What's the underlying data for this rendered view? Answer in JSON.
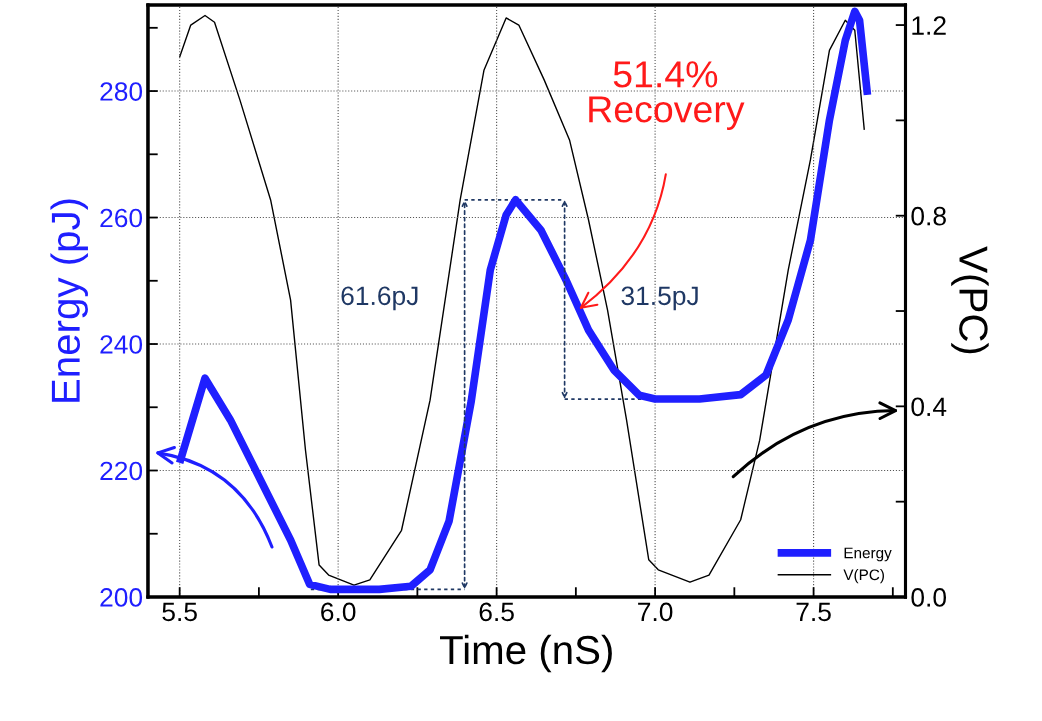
{
  "chart_data": {
    "type": "line",
    "xlabel": "Time (nS)",
    "ylabel": "Energy (pJ)",
    "y2label": "V(PC)",
    "xlim": [
      5.4,
      7.79
    ],
    "xticks": [
      5.5,
      {
        "value": 5.75,
        "label": null
      },
      {
        "value": 6,
        "label": "6.0"
      },
      {
        "value": 6.25,
        "label": null
      },
      6.5,
      {
        "value": 6.75,
        "label": null
      },
      {
        "value": 7,
        "label": "7.0"
      },
      {
        "value": 7.25,
        "label": null
      },
      7.5,
      {
        "value": 7.75,
        "label": null
      }
    ],
    "ylim": [
      200,
      293.6
    ],
    "yticks": [
      200,
      {
        "value": 210,
        "label": null
      },
      220,
      {
        "value": 230,
        "label": null
      },
      240,
      {
        "value": 250,
        "label": null
      },
      260,
      {
        "value": 270,
        "label": null
      },
      280,
      {
        "value": 290,
        "label": null
      }
    ],
    "y2lim": [
      0,
      1.242
    ],
    "y2ticks": [
      {
        "value": 0,
        "label": "0.0"
      },
      {
        "value": 0.2,
        "label": null
      },
      0.4,
      {
        "value": 0.6,
        "label": null
      },
      0.8,
      {
        "value": 1.0,
        "label": null
      },
      1.2
    ],
    "grid": true,
    "legend": "bottom right",
    "series": [
      {
        "name": "Energy",
        "color": "#1f1fff",
        "x": [
          5.5,
          5.58,
          5.66,
          5.755,
          5.85,
          5.91,
          5.975,
          6.13,
          6.23,
          6.29,
          6.35,
          6.42,
          6.48,
          6.53,
          6.56,
          6.64,
          6.72,
          6.79,
          6.87,
          6.95,
          7.0,
          7.14,
          7.27,
          7.35,
          7.42,
          7.49,
          7.55,
          7.6,
          7.63,
          7.645,
          7.67
        ],
        "values": [
          221.2,
          234.6,
          228,
          218.5,
          209,
          202,
          201.2,
          201.2,
          201.7,
          204.3,
          212,
          231,
          251.7,
          260.4,
          262.8,
          258,
          250,
          242.2,
          235.9,
          231.9,
          231.3,
          231.3,
          232,
          235.1,
          243.8,
          256.4,
          275.4,
          288,
          292.6,
          291.2,
          279.4
        ]
      },
      {
        "name": "V(PC)",
        "color": "#000000",
        "axis": "y2",
        "x": [
          5.5,
          5.535,
          5.58,
          5.61,
          5.69,
          5.787,
          5.85,
          5.897,
          5.94,
          5.97,
          6.05,
          6.1,
          6.2,
          6.29,
          6.385,
          6.46,
          6.53,
          6.57,
          6.65,
          6.73,
          6.79,
          6.85,
          6.91,
          6.98,
          7.01,
          7.11,
          7.17,
          7.27,
          7.33,
          7.42,
          7.49,
          7.55,
          7.6,
          7.63,
          7.66
        ],
        "values": [
          1.133,
          1.2,
          1.22,
          1.206,
          1.043,
          0.833,
          0.623,
          0.308,
          0.067,
          0.046,
          0.025,
          0.036,
          0.14,
          0.413,
          0.833,
          1.105,
          1.215,
          1.2,
          1.085,
          0.959,
          0.791,
          0.602,
          0.371,
          0.078,
          0.057,
          0.031,
          0.046,
          0.162,
          0.329,
          0.686,
          0.917,
          1.147,
          1.21,
          1.189,
          0.98
        ]
      }
    ],
    "annotations": [
      "61.6pJ",
      "31.5pJ",
      {
        "text": "51.4%\nRecovery",
        "x": 6.76,
        "y": 245.5
      }
    ]
  }
}
